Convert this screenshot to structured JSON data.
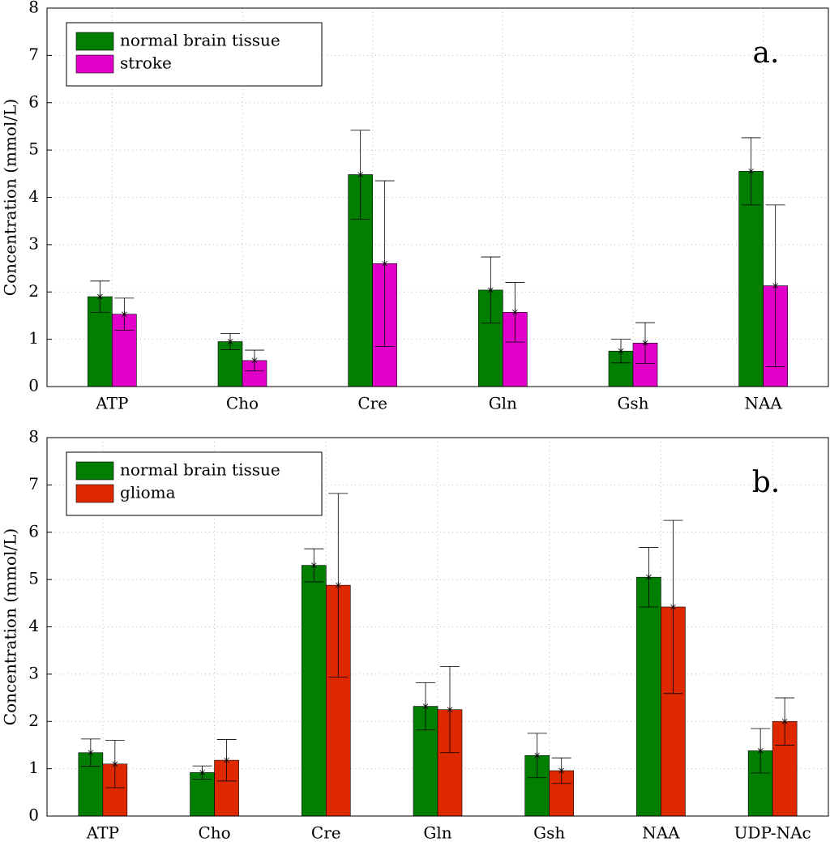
{
  "chart_data": [
    {
      "type": "bar",
      "ylabel": "Concentration (mmol/L)",
      "annotation": "a.",
      "categories": [
        "ATP",
        "Cho",
        "Cre",
        "Gln",
        "Gsh",
        "NAA"
      ],
      "series": [
        {
          "name": "normal brain tissue",
          "color": "#007f00",
          "values": [
            1.9,
            0.95,
            4.48,
            2.04,
            0.75,
            4.55
          ],
          "errors": [
            0.33,
            0.17,
            0.94,
            0.7,
            0.25,
            0.71
          ]
        },
        {
          "name": "stroke",
          "color": "#e000c8",
          "values": [
            1.53,
            0.55,
            2.6,
            1.57,
            0.92,
            2.13
          ],
          "errors": [
            0.34,
            0.22,
            1.75,
            0.63,
            0.43,
            1.71
          ]
        }
      ],
      "ylim": [
        0,
        8
      ],
      "yticks": [
        0,
        1,
        2,
        3,
        4,
        5,
        6,
        7,
        8
      ],
      "grid": true,
      "legend": "upper left"
    },
    {
      "type": "bar",
      "ylabel": "Concentration (mmol/L)",
      "annotation": "b.",
      "categories": [
        "ATP",
        "Cho",
        "Cre",
        "Gln",
        "Gsh",
        "NAA",
        "UDP-NAc"
      ],
      "series": [
        {
          "name": "normal brain tissue",
          "color": "#007f00",
          "values": [
            1.34,
            0.92,
            5.3,
            2.32,
            1.28,
            5.05,
            1.38
          ],
          "errors": [
            0.29,
            0.14,
            0.35,
            0.5,
            0.47,
            0.63,
            0.47
          ]
        },
        {
          "name": "glioma",
          "color": "#dd2800",
          "values": [
            1.1,
            1.18,
            4.88,
            2.25,
            0.96,
            4.42,
            2.0
          ],
          "errors": [
            0.5,
            0.44,
            1.94,
            0.91,
            0.27,
            1.83,
            0.5
          ]
        }
      ],
      "ylim": [
        0,
        8
      ],
      "yticks": [
        0,
        1,
        2,
        3,
        4,
        5,
        6,
        7,
        8
      ],
      "grid": true,
      "legend": "upper left"
    }
  ]
}
